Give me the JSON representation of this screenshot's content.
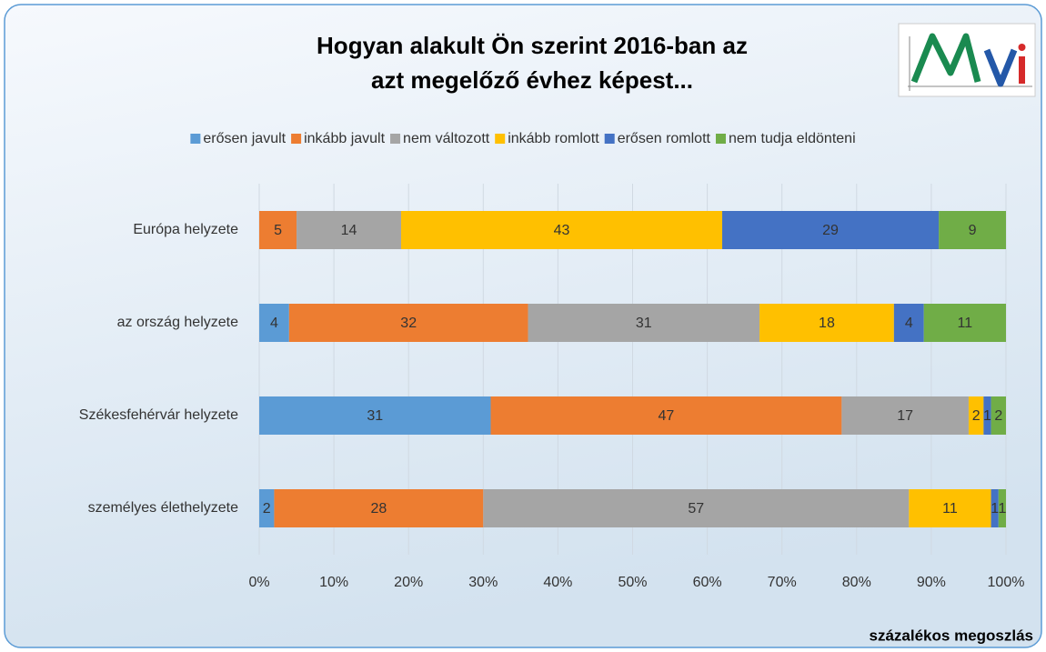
{
  "chart_data": {
    "type": "stacked-bar-horizontal",
    "title": [
      "Hogyan alakult Ön szerint 2016-ban az",
      "azt megelőző évhez képest..."
    ],
    "categories": [
      "Európa helyzete",
      "az ország helyzete",
      "Székesfehérvár helyzete",
      "személyes élethelyzete"
    ],
    "series": [
      {
        "name": "erősen javult",
        "color": "#5b9bd5",
        "values": [
          0,
          4,
          31,
          2
        ]
      },
      {
        "name": "inkább javult",
        "color": "#ed7d31",
        "values": [
          5,
          32,
          47,
          28
        ]
      },
      {
        "name": "nem változott",
        "color": "#a5a5a5",
        "values": [
          14,
          31,
          17,
          57
        ]
      },
      {
        "name": "inkább romlott",
        "color": "#ffc000",
        "values": [
          43,
          18,
          2,
          11
        ]
      },
      {
        "name": "erősen romlott",
        "color": "#4472c4",
        "values": [
          29,
          4,
          1,
          1
        ]
      },
      {
        "name": "nem tudja eldönteni",
        "color": "#70ad47",
        "values": [
          9,
          11,
          2,
          1
        ]
      }
    ],
    "xlim": [
      0,
      100
    ],
    "xticks": [
      {
        "value": 0,
        "label": "0%"
      },
      {
        "value": 10,
        "label": "10%"
      },
      {
        "value": 20,
        "label": "20%"
      },
      {
        "value": 30,
        "label": "30%"
      },
      {
        "value": 40,
        "label": "40%"
      },
      {
        "value": 50,
        "label": "50%"
      },
      {
        "value": 60,
        "label": "60%"
      },
      {
        "value": 70,
        "label": "70%"
      },
      {
        "value": 80,
        "label": "80%"
      },
      {
        "value": 90,
        "label": "90%"
      },
      {
        "value": 100,
        "label": "100%"
      }
    ],
    "grid": true,
    "legend": "top",
    "xlabel": "százalékos megoszlás"
  }
}
